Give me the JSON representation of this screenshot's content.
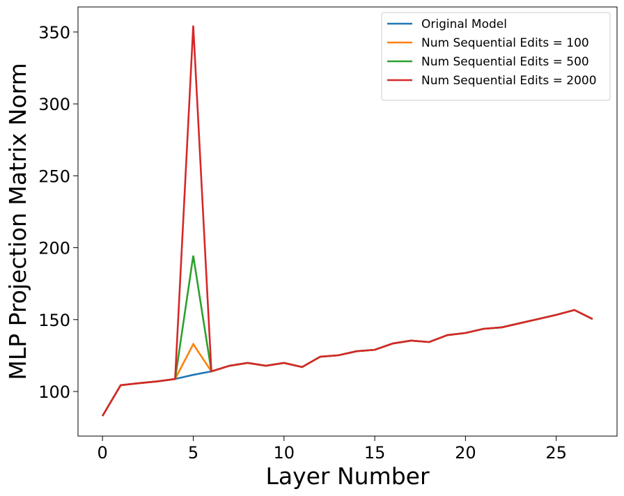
{
  "chart_data": {
    "type": "line",
    "x_label": "Layer Number",
    "y_label": "MLP Projection Matrix Norm",
    "x": [
      0,
      1,
      2,
      3,
      4,
      5,
      6,
      7,
      8,
      9,
      10,
      11,
      12,
      13,
      14,
      15,
      16,
      17,
      18,
      19,
      20,
      21,
      22,
      23,
      24,
      25,
      26,
      27
    ],
    "series": [
      {
        "name": "Original Model",
        "color": "#1f77b4",
        "values": [
          83,
          104.4,
          105.8,
          107,
          108.7,
          111.6,
          114,
          117.9,
          119.9,
          117.9,
          119.9,
          117,
          124.2,
          125.2,
          128,
          129,
          133.4,
          135.4,
          134.4,
          139.2,
          140.7,
          143.6,
          144.6,
          147.5,
          150.4,
          153.3,
          156.7,
          150.4
        ]
      },
      {
        "name": "Num Sequential Edits = 100",
        "color": "#ff7f0e",
        "values": [
          83,
          104.4,
          105.8,
          107,
          108.7,
          132.9,
          114,
          117.9,
          119.9,
          117.9,
          119.9,
          117,
          124.2,
          125.2,
          128,
          129,
          133.4,
          135.4,
          134.4,
          139.2,
          140.7,
          143.6,
          144.6,
          147.5,
          150.4,
          153.3,
          156.7,
          150.4
        ]
      },
      {
        "name": "Num Sequential Edits = 500",
        "color": "#2ca02c",
        "values": [
          83,
          104.4,
          105.8,
          107,
          108.7,
          194.5,
          114,
          117.9,
          119.9,
          117.9,
          119.9,
          117,
          124.2,
          125.2,
          128,
          129,
          133.4,
          135.4,
          134.4,
          139.2,
          140.7,
          143.6,
          144.6,
          147.5,
          150.4,
          153.3,
          156.7,
          150.4
        ]
      },
      {
        "name": "Num Sequential Edits = 2000",
        "color": "#d62728",
        "values": [
          83,
          104.4,
          105.8,
          107,
          108.7,
          354.4,
          114,
          117.9,
          119.9,
          117.9,
          119.9,
          117,
          124.2,
          125.2,
          128,
          129,
          133.4,
          135.4,
          134.4,
          139.2,
          140.7,
          143.6,
          144.6,
          147.5,
          150.4,
          153.3,
          156.7,
          150.4
        ]
      }
    ],
    "xlim": [
      -1.35,
      28.35
    ],
    "ylim": [
      69,
      367.4
    ],
    "xticks": [
      0,
      5,
      10,
      15,
      20,
      25
    ],
    "yticks": [
      100,
      150,
      200,
      250,
      300,
      350
    ],
    "legend": "upper-right",
    "grid": false
  }
}
